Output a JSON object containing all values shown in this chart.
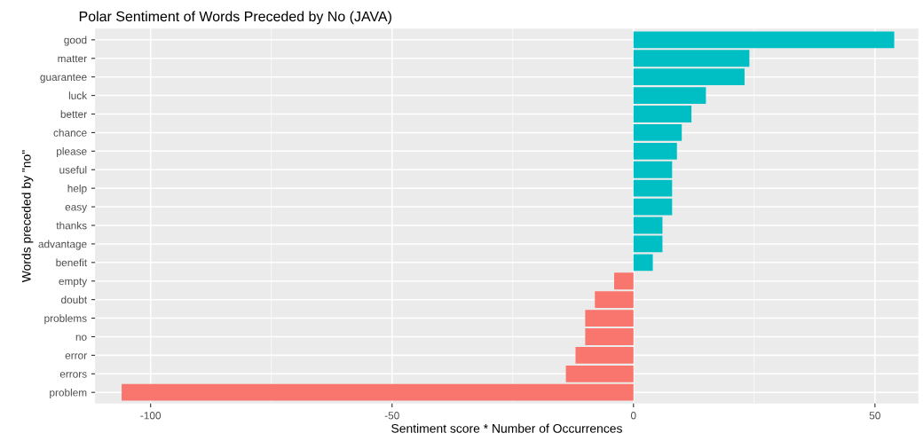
{
  "chart_data": {
    "type": "bar",
    "orientation": "horizontal",
    "title": "Polar Sentiment of Words Preceded by No (JAVA)",
    "xlabel": "Sentiment score * Number of Occurrences",
    "ylabel": "Words preceded by \"no\"",
    "categories": [
      "good",
      "matter",
      "guarantee",
      "luck",
      "better",
      "chance",
      "please",
      "useful",
      "help",
      "easy",
      "thanks",
      "advantage",
      "benefit",
      "empty",
      "doubt",
      "problems",
      "no",
      "error",
      "errors",
      "problem"
    ],
    "values": [
      54,
      24,
      23,
      15,
      12,
      10,
      9,
      8,
      8,
      8,
      6,
      6,
      4,
      -4,
      -8,
      -10,
      -10,
      -12,
      -14,
      -106
    ],
    "colors": [
      "#00bfc4",
      "#00bfc4",
      "#00bfc4",
      "#00bfc4",
      "#00bfc4",
      "#00bfc4",
      "#00bfc4",
      "#00bfc4",
      "#00bfc4",
      "#00bfc4",
      "#00bfc4",
      "#00bfc4",
      "#00bfc4",
      "#f8766d",
      "#f8766d",
      "#f8766d",
      "#f8766d",
      "#f8766d",
      "#f8766d",
      "#f8766d"
    ],
    "xlim": [
      -111.5,
      59
    ],
    "xticks": [
      -100,
      -50,
      0,
      50
    ],
    "grid": true,
    "legend": false
  }
}
